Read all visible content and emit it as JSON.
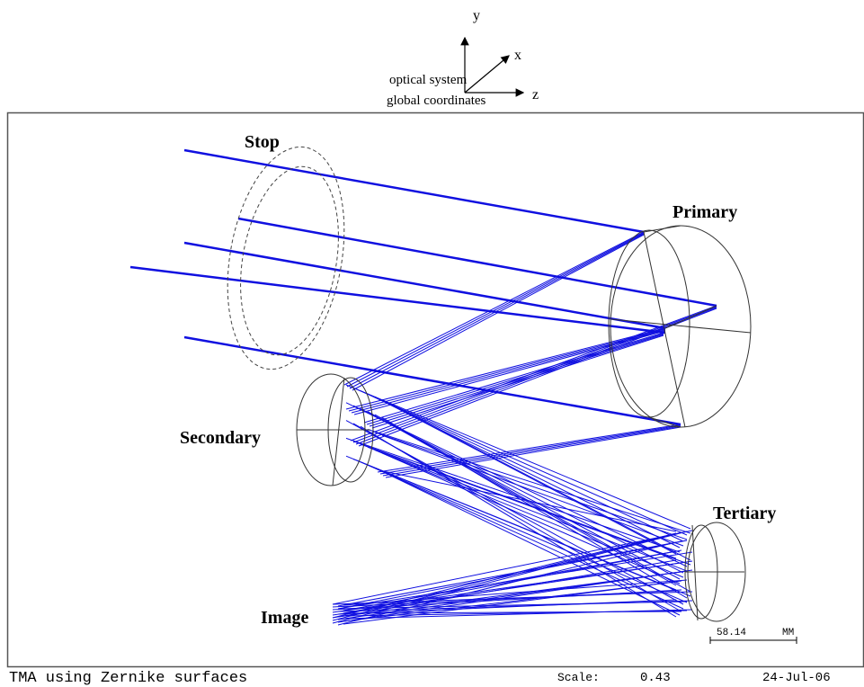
{
  "axes": {
    "y": "y",
    "x": "x",
    "z": "z",
    "caption_line1": "optical system",
    "caption_line2": "global coordinates"
  },
  "labels": {
    "stop": "Stop",
    "primary": "Primary",
    "secondary": "Secondary",
    "tertiary": "Tertiary",
    "image": "Image"
  },
  "scale_bar": {
    "length": "58.14",
    "unit": "MM"
  },
  "footer": {
    "title": "TMA using Zernike surfaces",
    "scale_label": "Scale:",
    "scale_value": "0.43",
    "date": "24-Jul-06"
  }
}
